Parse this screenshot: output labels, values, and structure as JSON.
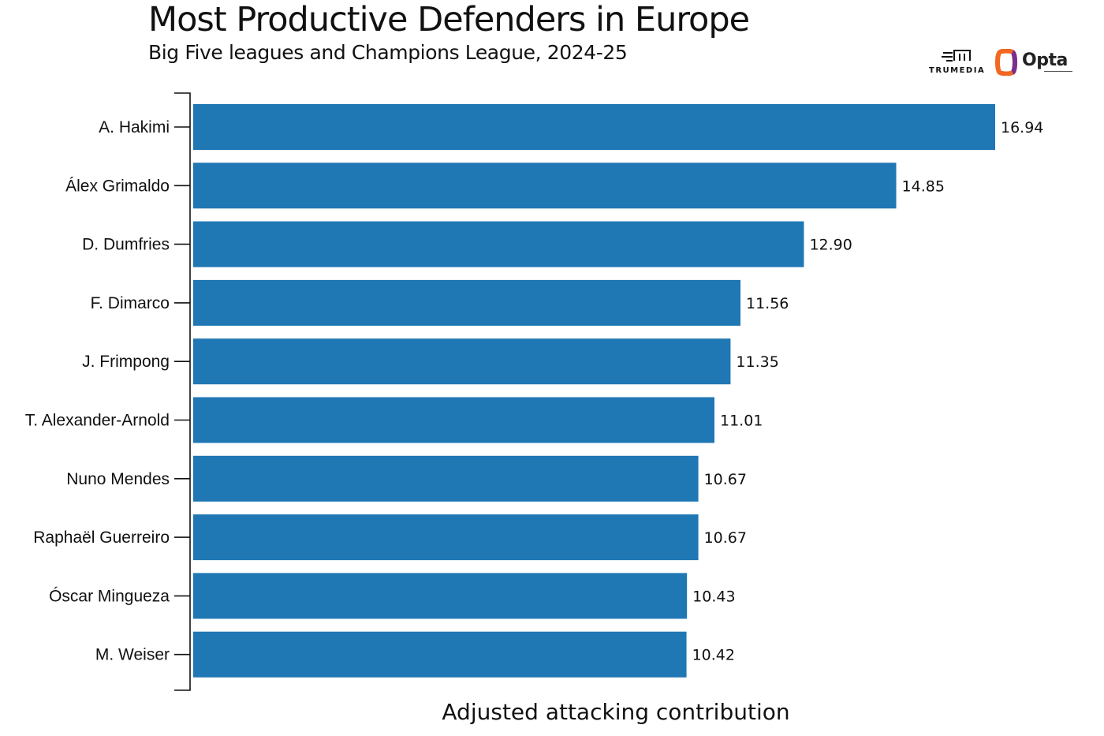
{
  "header": {
    "title": "Most Productive Defenders in Europe",
    "subtitle": "Big Five leagues and Champions League, 2024-25"
  },
  "logos": {
    "trumedia": "TRUMEDIA",
    "opta": "Opta"
  },
  "colors": {
    "bar": "#1f77b4",
    "axis": "#111111",
    "opta_orange": "#f26722",
    "opta_purple": "#7b2d8e"
  },
  "chart_data": {
    "type": "bar",
    "orientation": "horizontal",
    "title": "Most Productive Defenders in Europe",
    "subtitle": "Big Five leagues and Champions League, 2024-25",
    "xlabel": "Adjusted attacking contribution",
    "ylabel": "",
    "xlim": [
      0,
      16.94
    ],
    "categories": [
      "A. Hakimi",
      "Álex Grimaldo",
      "D. Dumfries",
      "F. Dimarco",
      "J. Frimpong",
      "T. Alexander-Arnold",
      "Nuno Mendes",
      "Raphaël Guerreiro",
      "Óscar Mingueza",
      "M. Weiser"
    ],
    "values": [
      16.94,
      14.85,
      12.9,
      11.56,
      11.35,
      11.01,
      10.67,
      10.67,
      10.43,
      10.42
    ],
    "value_labels": [
      "16.94",
      "14.85",
      "12.90",
      "11.56",
      "11.35",
      "11.01",
      "10.67",
      "10.67",
      "10.43",
      "10.42"
    ],
    "grid": false,
    "legend": "none"
  }
}
